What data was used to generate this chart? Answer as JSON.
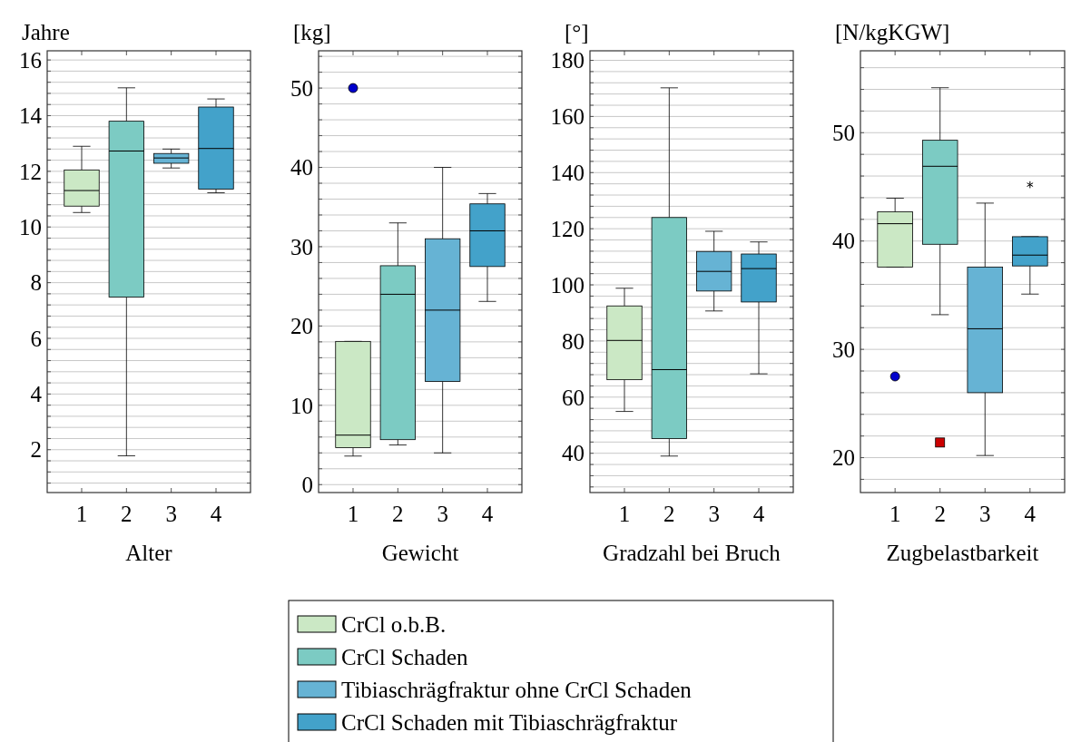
{
  "chart_data": [
    {
      "type": "box",
      "xlabel": "Alter",
      "ylabel": "Jahre",
      "categories": [
        "1",
        "2",
        "3",
        "4"
      ],
      "ylim": [
        0.46,
        16.33
      ],
      "yticks": [
        {
          "value": 0.8,
          "label": null
        },
        {
          "value": 1.2,
          "label": null
        },
        {
          "value": 1.6,
          "label": null
        },
        2,
        {
          "value": 2.4,
          "label": null
        },
        {
          "value": 2.8,
          "label": null
        },
        {
          "value": 3.2,
          "label": null
        },
        {
          "value": 3.6,
          "label": null
        },
        4,
        {
          "value": 4.4,
          "label": null
        },
        {
          "value": 4.8,
          "label": null
        },
        {
          "value": 5.2,
          "label": null
        },
        {
          "value": 5.6,
          "label": null
        },
        6,
        {
          "value": 6.4,
          "label": null
        },
        {
          "value": 6.8,
          "label": null
        },
        {
          "value": 7.2,
          "label": null
        },
        {
          "value": 7.6,
          "label": null
        },
        8,
        {
          "value": 8.4,
          "label": null
        },
        {
          "value": 8.8,
          "label": null
        },
        {
          "value": 9.2,
          "label": null
        },
        {
          "value": 9.6,
          "label": null
        },
        10,
        {
          "value": 10.4,
          "label": null
        },
        {
          "value": 10.8,
          "label": null
        },
        {
          "value": 11.2,
          "label": null
        },
        {
          "value": 11.6,
          "label": null
        },
        12,
        {
          "value": 12.4,
          "label": null
        },
        {
          "value": 12.8,
          "label": null
        },
        {
          "value": 13.2,
          "label": null
        },
        {
          "value": 13.6,
          "label": null
        },
        14,
        {
          "value": 14.4,
          "label": null
        },
        {
          "value": 14.8,
          "label": null
        },
        {
          "value": 15.2,
          "label": null
        },
        {
          "value": 15.6,
          "label": null
        },
        16
      ],
      "grid": "y",
      "legend": "bottom",
      "series": [
        {
          "name": "CrCl o.b.B.",
          "color": "#cbe8c5",
          "boxes": [
            {
              "low": 10.52,
              "q1": 10.75,
              "median": 11.31,
              "q3": 12.05,
              "high": 12.9
            },
            null,
            null,
            null
          ]
        },
        {
          "name": "CrCl Schaden",
          "color": "#7ccbc3",
          "boxes": [
            null,
            {
              "low": 1.78,
              "q1": 7.48,
              "median": 12.73,
              "q3": 13.8,
              "high": 15.0
            },
            null,
            null
          ]
        },
        {
          "name": "Tibiaschrägfraktur ohne CrCl Schaden",
          "color": "#66b3d4",
          "boxes": [
            null,
            null,
            {
              "low": 12.12,
              "q1": 12.29,
              "median": 12.48,
              "q3": 12.64,
              "high": 12.8
            },
            null
          ]
        },
        {
          "name": "CrCl Schaden mit Tibiaschrägfraktur",
          "color": "#43a2ca",
          "boxes": [
            null,
            null,
            null,
            {
              "low": 11.23,
              "q1": 11.36,
              "median": 12.82,
              "q3": 14.31,
              "high": 14.6
            }
          ]
        }
      ]
    },
    {
      "type": "box",
      "xlabel": "Gewicht",
      "ylabel": "[kg]",
      "categories": [
        "1",
        "2",
        "3",
        "4"
      ],
      "ylim": [
        -1,
        54.7
      ],
      "yticks": [
        0,
        {
          "value": 2,
          "label": null
        },
        {
          "value": 4,
          "label": null
        },
        {
          "value": 6,
          "label": null
        },
        {
          "value": 8,
          "label": null
        },
        10,
        {
          "value": 12,
          "label": null
        },
        {
          "value": 14,
          "label": null
        },
        {
          "value": 16,
          "label": null
        },
        {
          "value": 18,
          "label": null
        },
        20,
        {
          "value": 22,
          "label": null
        },
        {
          "value": 24,
          "label": null
        },
        {
          "value": 26,
          "label": null
        },
        {
          "value": 28,
          "label": null
        },
        30,
        {
          "value": 32,
          "label": null
        },
        {
          "value": 34,
          "label": null
        },
        {
          "value": 36,
          "label": null
        },
        {
          "value": 38,
          "label": null
        },
        40,
        {
          "value": 42,
          "label": null
        },
        {
          "value": 44,
          "label": null
        },
        {
          "value": 46,
          "label": null
        },
        {
          "value": 48,
          "label": null
        },
        50,
        {
          "value": 52,
          "label": null
        },
        {
          "value": 54,
          "label": null
        }
      ],
      "grid": "y",
      "series": [
        {
          "color": "#cbe8c5",
          "marker": "circle",
          "boxes": [
            {
              "low": 3.6,
              "q1": 4.66,
              "median": 6.24,
              "q3": 18.06,
              "high": 18.06,
              "outliers": [
                50
              ]
            },
            null,
            null,
            null
          ]
        },
        {
          "color": "#7ccbc3",
          "boxes": [
            null,
            {
              "low": 5.0,
              "q1": 5.67,
              "median": 24.0,
              "q3": 27.6,
              "high": 33.0
            },
            null,
            null
          ]
        },
        {
          "color": "#66b3d4",
          "boxes": [
            null,
            null,
            {
              "low": 4.0,
              "q1": 13.0,
              "median": 22.0,
              "q3": 31.0,
              "high": 40.0
            },
            null
          ]
        },
        {
          "color": "#43a2ca",
          "boxes": [
            null,
            null,
            null,
            {
              "low": 23.1,
              "q1": 27.5,
              "median": 32.0,
              "q3": 35.4,
              "high": 36.7
            }
          ]
        }
      ]
    },
    {
      "type": "box",
      "xlabel": "Gradzahl bei Bruch",
      "ylabel": "[°]",
      "categories": [
        "1",
        "2",
        "3",
        "4"
      ],
      "ylim": [
        26,
        183.4
      ],
      "yticks": [
        {
          "value": 28,
          "label": null
        },
        {
          "value": 32,
          "label": null
        },
        {
          "value": 36,
          "label": null
        },
        40,
        {
          "value": 44,
          "label": null
        },
        {
          "value": 48,
          "label": null
        },
        {
          "value": 52,
          "label": null
        },
        {
          "value": 56,
          "label": null
        },
        60,
        {
          "value": 64,
          "label": null
        },
        {
          "value": 68,
          "label": null
        },
        {
          "value": 72,
          "label": null
        },
        {
          "value": 76,
          "label": null
        },
        80,
        {
          "value": 84,
          "label": null
        },
        {
          "value": 88,
          "label": null
        },
        {
          "value": 92,
          "label": null
        },
        {
          "value": 96,
          "label": null
        },
        100,
        {
          "value": 104,
          "label": null
        },
        {
          "value": 108,
          "label": null
        },
        {
          "value": 112,
          "label": null
        },
        {
          "value": 116,
          "label": null
        },
        120,
        {
          "value": 124,
          "label": null
        },
        {
          "value": 128,
          "label": null
        },
        {
          "value": 132,
          "label": null
        },
        {
          "value": 136,
          "label": null
        },
        140,
        {
          "value": 144,
          "label": null
        },
        {
          "value": 148,
          "label": null
        },
        {
          "value": 152,
          "label": null
        },
        {
          "value": 156,
          "label": null
        },
        160,
        {
          "value": 164,
          "label": null
        },
        {
          "value": 168,
          "label": null
        },
        {
          "value": 172,
          "label": null
        },
        {
          "value": 176,
          "label": null
        },
        180
      ],
      "grid": "y",
      "series": [
        {
          "color": "#cbe8c5",
          "boxes": [
            {
              "low": 54.9,
              "q1": 66.2,
              "median": 80.2,
              "q3": 92.5,
              "high": 98.8
            },
            null,
            null,
            null
          ]
        },
        {
          "color": "#7ccbc3",
          "boxes": [
            null,
            {
              "low": 39.0,
              "q1": 45.2,
              "median": 69.8,
              "q3": 124.0,
              "high": 170.2
            },
            null,
            null
          ]
        },
        {
          "color": "#66b3d4",
          "boxes": [
            null,
            null,
            {
              "low": 90.7,
              "q1": 97.8,
              "median": 104.8,
              "q3": 111.9,
              "high": 119.1
            },
            null
          ]
        },
        {
          "color": "#43a2ca",
          "boxes": [
            null,
            null,
            null,
            {
              "low": 68.3,
              "q1": 93.9,
              "median": 105.8,
              "q3": 111.0,
              "high": 115.3
            }
          ]
        }
      ]
    },
    {
      "type": "box",
      "xlabel": "Zugbelastbarkeit",
      "ylabel": "[N/kgKGW]",
      "categories": [
        "1",
        "2",
        "3",
        "4"
      ],
      "ylim": [
        16.78,
        57.56
      ],
      "yticks": [
        {
          "value": 18,
          "label": null
        },
        20,
        {
          "value": 22,
          "label": null
        },
        {
          "value": 24,
          "label": null
        },
        {
          "value": 26,
          "label": null
        },
        {
          "value": 28,
          "label": null
        },
        30,
        {
          "value": 32,
          "label": null
        },
        {
          "value": 34,
          "label": null
        },
        {
          "value": 36,
          "label": null
        },
        {
          "value": 38,
          "label": null
        },
        40,
        {
          "value": 42,
          "label": null
        },
        {
          "value": 44,
          "label": null
        },
        {
          "value": 46,
          "label": null
        },
        {
          "value": 48,
          "label": null
        },
        50,
        {
          "value": 52,
          "label": null
        },
        {
          "value": 54,
          "label": null
        },
        {
          "value": 56,
          "label": null
        }
      ],
      "grid": "y",
      "series": [
        {
          "color": "#cbe8c5",
          "marker": "circle",
          "boxes": [
            {
              "low": 37.6,
              "q1": 37.6,
              "median": 41.6,
              "q3": 42.7,
              "high": 43.95,
              "outliers": [
                27.5
              ]
            },
            null,
            null,
            null
          ]
        },
        {
          "color": "#7ccbc3",
          "marker": "square",
          "boxes": [
            null,
            {
              "low": 33.2,
              "q1": 39.7,
              "median": 46.9,
              "q3": 49.3,
              "high": 54.15,
              "outliers": [
                21.4
              ]
            },
            null,
            null
          ]
        },
        {
          "color": "#66b3d4",
          "boxes": [
            null,
            null,
            {
              "low": 20.2,
              "q1": 26.0,
              "median": 31.9,
              "q3": 37.6,
              "high": 43.5
            },
            null
          ]
        },
        {
          "color": "#43a2ca",
          "marker": "star",
          "boxes": [
            null,
            null,
            null,
            {
              "low": 35.1,
              "q1": 37.7,
              "median": 38.7,
              "q3": 40.4,
              "high": 40.4,
              "outliers": [
                45.2
              ]
            }
          ]
        }
      ]
    }
  ]
}
